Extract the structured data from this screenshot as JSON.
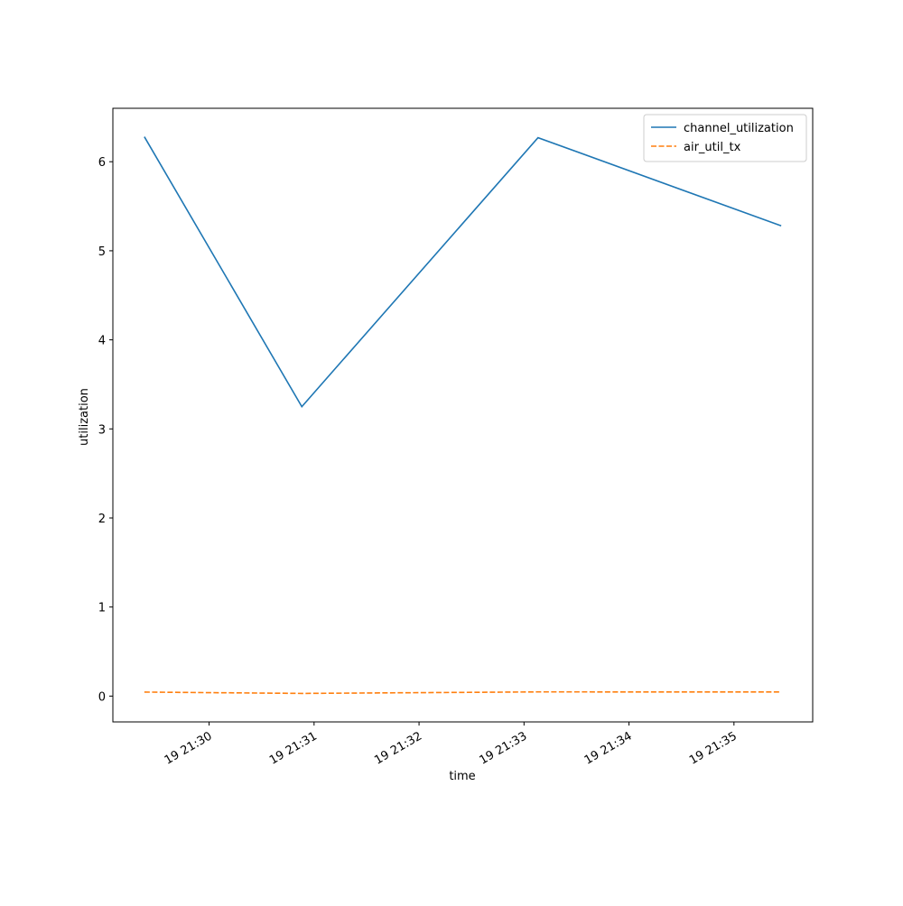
{
  "chart_data": {
    "type": "line",
    "x_label": "time",
    "y_label": "utilization",
    "x": [
      "19 21:29:23",
      "19 21:30:53",
      "19 21:33:08",
      "19 21:35:27"
    ],
    "series": [
      {
        "name": "channel_utilization",
        "color": "#1f77b4",
        "dash": "solid",
        "values": [
          6.28,
          3.25,
          6.27,
          5.28
        ]
      },
      {
        "name": "air_util_tx",
        "color": "#ff7f0e",
        "dash": "dashed",
        "values": [
          0.045,
          0.03,
          0.047,
          0.046
        ]
      }
    ],
    "xlim": [
      "19 21:29:05",
      "19 21:35:45"
    ],
    "xticks": [
      "19 21:30",
      "19 21:31",
      "19 21:32",
      "19 21:33",
      "19 21:34",
      "19 21:35"
    ],
    "ylim": [
      -0.29,
      6.6
    ],
    "yticks": [
      0,
      1,
      2,
      3,
      4,
      5,
      6
    ],
    "legend": "upper-right"
  }
}
